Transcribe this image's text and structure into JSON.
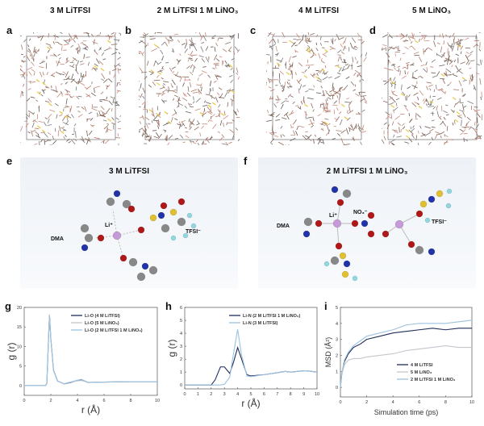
{
  "snapshots": [
    {
      "label": "a",
      "title": "3 M LiTFSI"
    },
    {
      "label": "b",
      "title": "2 M LiTFSI 1 M LiNO₃"
    },
    {
      "label": "c",
      "title": "4 M LiTFSI"
    },
    {
      "label": "d",
      "title": "5 M LiNO₃"
    }
  ],
  "panel_e": {
    "label": "e",
    "title": "3 M LiTFSI",
    "li": "Li⁺",
    "dma": "DMA",
    "tfsi": "TFSI⁻"
  },
  "panel_f": {
    "label": "f",
    "title": "2 M LiTFSI 1 M LiNO₃",
    "li": "Li⁺",
    "no3": "NO₃⁻",
    "dma": "DMA",
    "tfsi": "TFSI⁻"
  },
  "chart_data": [
    {
      "label": "g",
      "type": "line",
      "xlabel": "r (Å)",
      "ylabel": "g (r)",
      "xlim": [
        0,
        10
      ],
      "ylim": [
        -2.5,
        20
      ],
      "xticks": [
        0,
        2,
        4,
        6,
        8,
        10
      ],
      "yticks": [
        0,
        5,
        10,
        15,
        20
      ],
      "legend_position": "top-right",
      "series": [
        {
          "name": "Li-O (4 M LiTFSI)",
          "color": "#1f2d5a",
          "x": [
            0,
            1.6,
            1.7,
            1.85,
            1.9,
            2.0,
            2.2,
            2.5,
            3.0,
            3.5,
            4.0,
            4.3,
            4.8,
            6,
            8,
            10
          ],
          "y": [
            0,
            0,
            0.5,
            14,
            18,
            12,
            4,
            1.2,
            0.4,
            0.8,
            1.3,
            1.5,
            0.8,
            0.9,
            1,
            1
          ]
        },
        {
          "name": "Li-O (5 M LiNO₃)",
          "color": "#c3c6cc",
          "x": [
            0,
            1.6,
            1.7,
            1.85,
            1.9,
            2.0,
            2.2,
            2.5,
            3.0,
            3.5,
            4.0,
            4.3,
            4.8,
            6,
            8,
            10
          ],
          "y": [
            0,
            0,
            0.6,
            14.5,
            18.2,
            12,
            3.8,
            1.1,
            0.4,
            0.9,
            1.2,
            1.3,
            0.8,
            0.9,
            1,
            1
          ]
        },
        {
          "name": "Li-O (2 M LiTFSI 1 M LiNO₃)",
          "color": "#9cc3e0",
          "x": [
            0,
            1.6,
            1.7,
            1.85,
            1.9,
            2.0,
            2.2,
            2.5,
            3.0,
            3.5,
            4.0,
            4.3,
            4.8,
            6,
            8,
            10
          ],
          "y": [
            0,
            0,
            0.5,
            14,
            17.8,
            12,
            4,
            1.2,
            0.5,
            0.9,
            1.4,
            1.6,
            0.8,
            0.9,
            1,
            1
          ]
        }
      ]
    },
    {
      "label": "h",
      "type": "line",
      "xlabel": "r (Å)",
      "ylabel": "g (r)",
      "xlim": [
        0,
        10
      ],
      "ylim": [
        -0.3,
        6
      ],
      "xticks": [
        0,
        1,
        2,
        3,
        4,
        5,
        6,
        7,
        8,
        9,
        10
      ],
      "yticks": [
        0,
        1,
        2,
        3,
        4,
        5,
        6
      ],
      "legend_position": "top-right",
      "series": [
        {
          "name": "Li-N (2 M LiTFSI 1 M LiNO₃)",
          "color": "#1f2d5a",
          "x": [
            0,
            2,
            2.3,
            2.7,
            3.0,
            3.4,
            3.7,
            4.0,
            4.3,
            4.7,
            5,
            6,
            7,
            7.6,
            8,
            9,
            9.2,
            10
          ],
          "y": [
            0,
            0,
            0.4,
            1.4,
            1.4,
            0.9,
            1.8,
            2.9,
            2.0,
            0.8,
            0.7,
            0.8,
            0.95,
            1.05,
            1.0,
            1.1,
            1.1,
            1.0
          ]
        },
        {
          "name": "Li-N (3 M LiTFSI)",
          "color": "#9cc3e0",
          "x": [
            0,
            2,
            2.3,
            2.7,
            3.0,
            3.4,
            3.7,
            4.0,
            4.3,
            4.7,
            5,
            6,
            7,
            7.6,
            8,
            9,
            9.2,
            10
          ],
          "y": [
            0,
            0,
            0,
            0,
            0.05,
            0.6,
            2.5,
            4.3,
            2.3,
            0.7,
            0.65,
            0.8,
            0.95,
            1.05,
            1.0,
            1.1,
            1.1,
            1.0
          ]
        }
      ]
    },
    {
      "label": "i",
      "type": "line",
      "xlabel": "Simulation time (ps)",
      "ylabel": "MSD (Å²)",
      "xlim": [
        0,
        10
      ],
      "ylim": [
        -0.6,
        5
      ],
      "xticks": [
        0,
        2,
        4,
        6,
        8,
        10
      ],
      "yticks": [
        0,
        1,
        2,
        3,
        4,
        5
      ],
      "legend_position": "bottom-right",
      "series": [
        {
          "name": "4 M LiTFSI",
          "color": "#1f2d5a",
          "x": [
            0,
            0.1,
            0.3,
            0.6,
            1,
            1.5,
            2,
            3,
            4,
            5,
            6,
            7,
            8,
            9,
            10
          ],
          "y": [
            0,
            0.8,
            1.6,
            2.1,
            2.5,
            2.7,
            3.0,
            3.2,
            3.4,
            3.5,
            3.6,
            3.7,
            3.6,
            3.7,
            3.7
          ]
        },
        {
          "name": "5 M LiNO₃",
          "color": "#c3c6cc",
          "x": [
            0,
            0.1,
            0.3,
            0.6,
            1,
            1.5,
            2,
            3,
            4,
            5,
            6,
            7,
            8,
            9,
            10
          ],
          "y": [
            0,
            0.8,
            1.4,
            1.7,
            1.8,
            1.8,
            1.9,
            2.0,
            2.1,
            2.3,
            2.4,
            2.5,
            2.6,
            2.5,
            2.5
          ]
        },
        {
          "name": "2 M LiTFSI 1 M LiNO₃",
          "color": "#9cc3e0",
          "x": [
            0,
            0.1,
            0.3,
            0.6,
            1,
            1.5,
            2,
            3,
            4,
            5,
            6,
            7,
            8,
            9,
            10
          ],
          "y": [
            0,
            0.9,
            1.7,
            2.2,
            2.6,
            2.9,
            3.2,
            3.4,
            3.6,
            3.9,
            4.0,
            4.0,
            4.0,
            4.1,
            4.2
          ]
        }
      ]
    }
  ]
}
